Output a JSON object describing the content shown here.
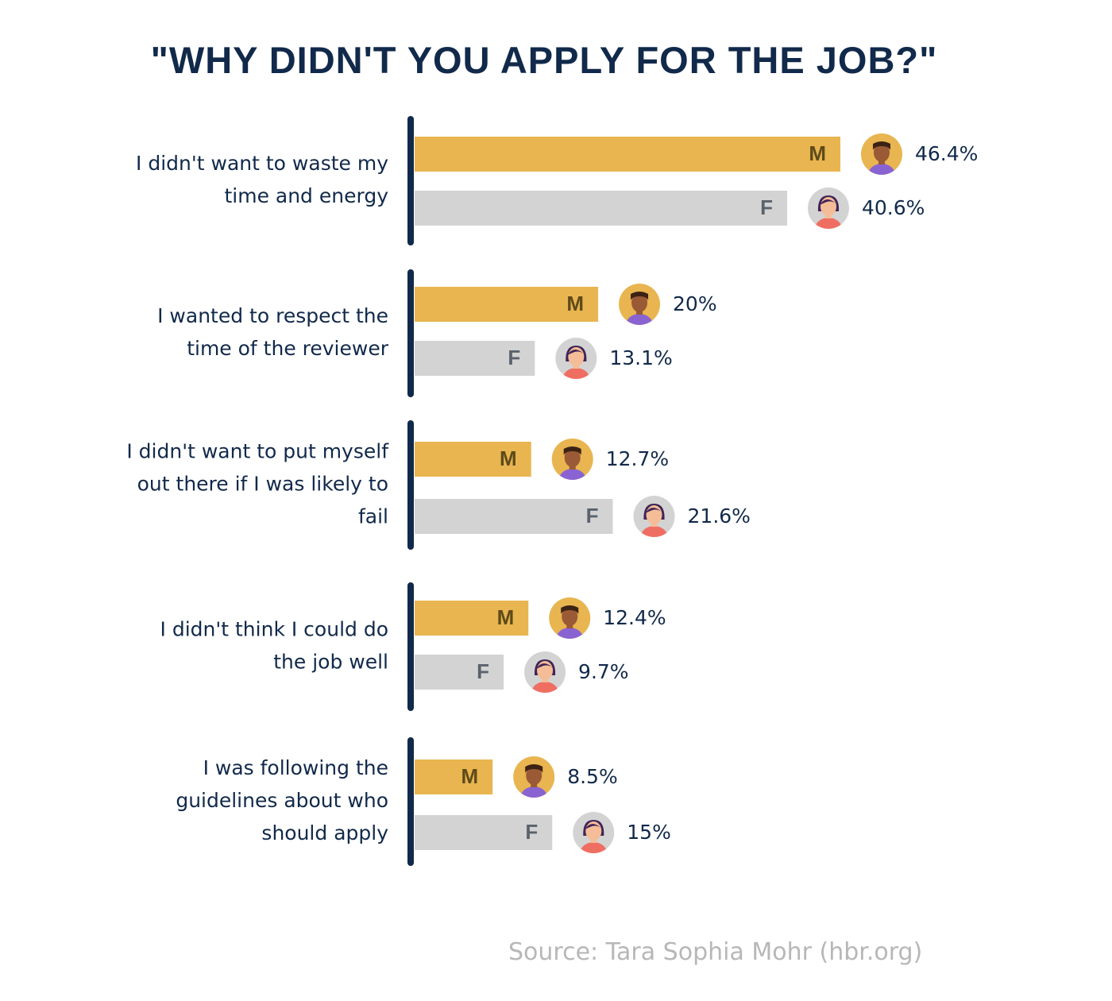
{
  "chart_data": {
    "type": "bar",
    "title": "\"WHY DIDN'T YOU APPLY FOR THE JOB?\"",
    "source": "Source: Tara Sophia Mohr (hbr.org)",
    "unit": "%",
    "categories": [
      "I didn't want to waste my time and energy",
      "I wanted to respect the time of the reviewer",
      "I didn't want to put myself out there if I was likely to fail",
      "I didn't think I could do the job well",
      "I was following the guidelines about who should apply"
    ],
    "category_lines": [
      [
        "I didn't want to waste my",
        "time and energy"
      ],
      [
        "I wanted to respect the",
        "time of the reviewer"
      ],
      [
        "I didn't want to put myself",
        "out there if I was likely to",
        "fail"
      ],
      [
        "I didn't think I could do",
        "the job well"
      ],
      [
        "I was following the",
        "guidelines about who",
        "should apply"
      ]
    ],
    "series": [
      {
        "name": "M",
        "values": [
          46.4,
          20,
          12.7,
          12.4,
          8.5
        ],
        "labels": [
          "46.4%",
          "20%",
          "12.7%",
          "12.4%",
          "8.5%"
        ],
        "color": "#e8b550",
        "letter_color": "#5e4a1a",
        "avatar": "male-avatar-icon"
      },
      {
        "name": "F",
        "values": [
          40.6,
          13.1,
          21.6,
          9.7,
          15
        ],
        "labels": [
          "40.6%",
          "13.1%",
          "21.6%",
          "9.7%",
          "15%"
        ],
        "color": "#d3d3d3",
        "letter_color": "#5a626b",
        "avatar": "female-avatar-icon"
      }
    ],
    "xlim": [
      0,
      50
    ],
    "grid": false,
    "legend": "none",
    "colors": {
      "title": "#11294a",
      "axis": "#11294a",
      "category_text": "#11294a",
      "value_text": "#11294a",
      "source_text": "#b7b7b7",
      "male_skin": "#9a5a36",
      "male_hair": "#3b2214",
      "male_shirt": "#8a63d2",
      "male_bg": "#e8b550",
      "female_skin": "#f5bd97",
      "female_hair": "#3f2458",
      "female_shirt": "#ef6e62",
      "female_bg": "#d3d3d3"
    }
  }
}
